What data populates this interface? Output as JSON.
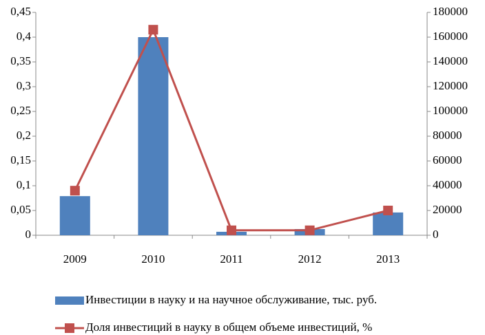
{
  "chart_data": {
    "type": "bar_line",
    "categories": [
      "2009",
      "2010",
      "2011",
      "2012",
      "2013"
    ],
    "series": [
      {
        "name": "Инвестиции в науку и на научное обслуживание, тыс. руб.",
        "type": "bar",
        "color": "#4f81bd",
        "values": [
          0.079,
          0.4,
          0.007,
          0.0125,
          0.046
        ]
      },
      {
        "name": "Доля инвестиций в науку в общем объеме инвестиций, %",
        "type": "line",
        "axis": "y2",
        "color": "#c0504d",
        "values": [
          36000,
          166000,
          4000,
          4000,
          20000
        ]
      }
    ],
    "ylim": [
      0,
      0.45
    ],
    "yticks": [
      0,
      {
        "value": 0.05,
        "label": "0,05"
      },
      {
        "value": 0.1,
        "label": "0,1"
      },
      {
        "value": 0.15,
        "label": "0,15"
      },
      {
        "value": 0.2,
        "label": "0,2"
      },
      {
        "value": 0.25,
        "label": "0,25"
      },
      {
        "value": 0.3,
        "label": "0,3"
      },
      {
        "value": 0.35,
        "label": "0,35"
      },
      {
        "value": 0.4,
        "label": "0,4"
      },
      {
        "value": 0.45,
        "label": "0,45"
      }
    ],
    "y2lim": [
      0,
      180000
    ],
    "y2ticks": [
      0,
      20000,
      40000,
      60000,
      80000,
      100000,
      120000,
      140000,
      160000,
      180000
    ],
    "grid": false,
    "legend": "bottom"
  }
}
